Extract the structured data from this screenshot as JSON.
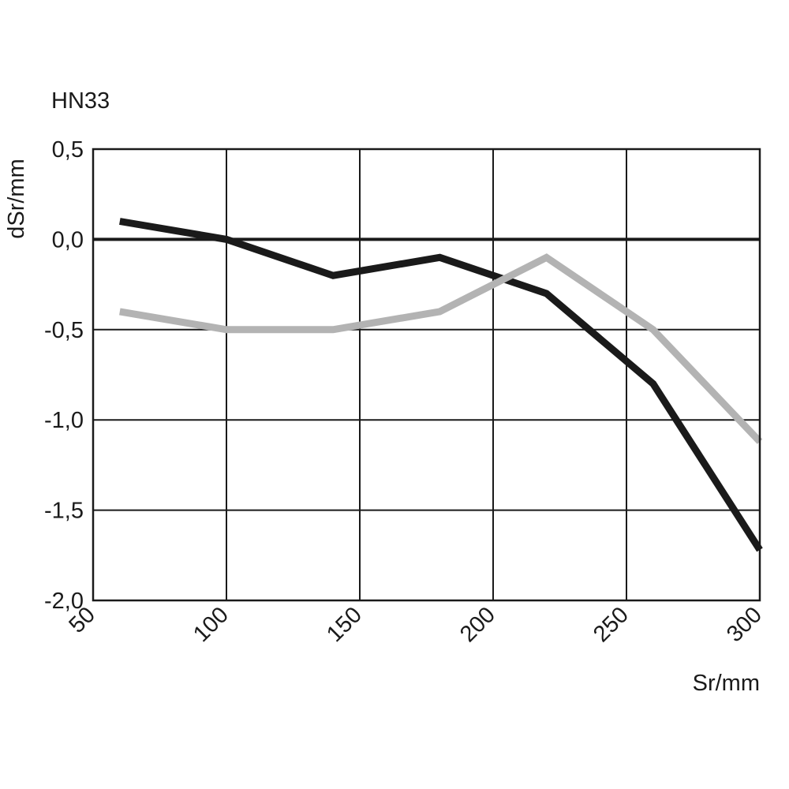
{
  "chart_data": {
    "type": "line",
    "title": "HN33",
    "xlabel": "Sr/mm",
    "ylabel": "dSr/mm",
    "xlim": [
      50,
      300
    ],
    "ylim": [
      -2.0,
      0.5
    ],
    "grid": true,
    "x_ticks": [
      50,
      100,
      150,
      200,
      250,
      300
    ],
    "x_tick_labels": [
      "50",
      "100",
      "150",
      "200",
      "250",
      "300"
    ],
    "y_ticks": [
      0.5,
      0.0,
      -0.5,
      -1.0,
      -1.5,
      -2.0
    ],
    "y_tick_labels": [
      "0,5",
      "0,0",
      "-0,5",
      "-1,0",
      "-1,5",
      "-2,0"
    ],
    "series": [
      {
        "color": "#1a1a1a",
        "x": [
          60,
          100,
          140,
          180,
          220,
          260,
          300
        ],
        "y": [
          0.1,
          0.0,
          -0.2,
          -0.1,
          -0.3,
          -0.8,
          -1.72
        ]
      },
      {
        "color": "#b3b3b3",
        "x": [
          60,
          100,
          140,
          180,
          220,
          260,
          300
        ],
        "y": [
          -0.4,
          -0.5,
          -0.5,
          -0.4,
          -0.1,
          -0.5,
          -1.12
        ]
      }
    ]
  }
}
